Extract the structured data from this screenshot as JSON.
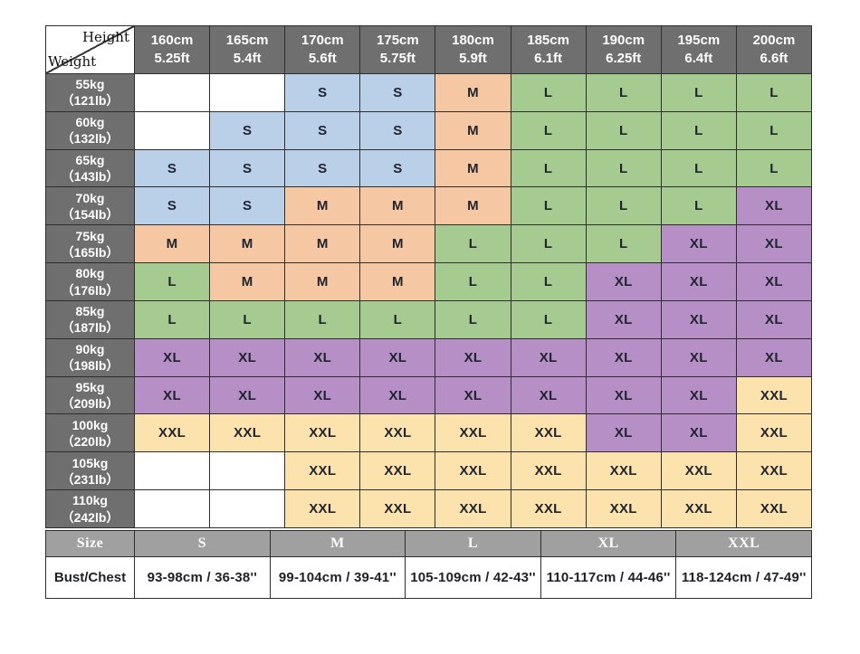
{
  "chart_data": {
    "type": "table",
    "title": "Clothing size chart by height and weight",
    "corner": {
      "height_label": "Height",
      "weight_label": "Weight"
    },
    "columns": [
      {
        "cm": "160cm",
        "ft": "5.25ft"
      },
      {
        "cm": "165cm",
        "ft": "5.4ft"
      },
      {
        "cm": "170cm",
        "ft": "5.6ft"
      },
      {
        "cm": "175cm",
        "ft": "5.75ft"
      },
      {
        "cm": "180cm",
        "ft": "5.9ft"
      },
      {
        "cm": "185cm",
        "ft": "6.1ft"
      },
      {
        "cm": "190cm",
        "ft": "6.25ft"
      },
      {
        "cm": "195cm",
        "ft": "6.4ft"
      },
      {
        "cm": "200cm",
        "ft": "6.6ft"
      }
    ],
    "rows": [
      {
        "kg": "55kg",
        "lb": "（121lb）",
        "cells": [
          "",
          "",
          "S",
          "S",
          "M",
          "L",
          "L",
          "L",
          "L"
        ]
      },
      {
        "kg": "60kg",
        "lb": "（132lb）",
        "cells": [
          "",
          "S",
          "S",
          "S",
          "M",
          "L",
          "L",
          "L",
          "L"
        ]
      },
      {
        "kg": "65kg",
        "lb": "（143lb）",
        "cells": [
          "S",
          "S",
          "S",
          "S",
          "M",
          "L",
          "L",
          "L",
          "L"
        ]
      },
      {
        "kg": "70kg",
        "lb": "（154lb）",
        "cells": [
          "S",
          "S",
          "M",
          "M",
          "M",
          "L",
          "L",
          "L",
          "XL"
        ]
      },
      {
        "kg": "75kg",
        "lb": "（165lb）",
        "cells": [
          "M",
          "M",
          "M",
          "M",
          "L",
          "L",
          "L",
          "XL",
          "XL"
        ]
      },
      {
        "kg": "80kg",
        "lb": "（176lb）",
        "cells": [
          "L",
          "M",
          "M",
          "M",
          "L",
          "L",
          "XL",
          "XL",
          "XL"
        ]
      },
      {
        "kg": "85kg",
        "lb": "（187lb）",
        "cells": [
          "L",
          "L",
          "L",
          "L",
          "L",
          "L",
          "XL",
          "XL",
          "XL"
        ]
      },
      {
        "kg": "90kg",
        "lb": "（198lb）",
        "cells": [
          "XL",
          "XL",
          "XL",
          "XL",
          "XL",
          "XL",
          "XL",
          "XL",
          "XL"
        ]
      },
      {
        "kg": "95kg",
        "lb": "（209lb）",
        "cells": [
          "XL",
          "XL",
          "XL",
          "XL",
          "XL",
          "XL",
          "XL",
          "XL",
          "XXL"
        ]
      },
      {
        "kg": "100kg",
        "lb": "（220lb）",
        "cells": [
          "XXL",
          "XXL",
          "XXL",
          "XXL",
          "XXL",
          "XXL",
          "XL",
          "XL",
          "XXL"
        ]
      },
      {
        "kg": "105kg",
        "lb": "（231lb）",
        "cells": [
          "",
          "",
          "XXL",
          "XXL",
          "XXL",
          "XXL",
          "XXL",
          "XXL",
          "XXL"
        ]
      },
      {
        "kg": "110kg",
        "lb": "（242lb）",
        "cells": [
          "",
          "",
          "XXL",
          "XXL",
          "XXL",
          "XXL",
          "XXL",
          "XXL",
          "XXL"
        ]
      }
    ],
    "size_row": {
      "label": "Size",
      "values": [
        "S",
        "M",
        "L",
        "XL",
        "XXL"
      ]
    },
    "bust_row": {
      "label": "Bust/Chest",
      "values": [
        "93-98cm / 36-38''",
        "99-104cm / 39-41''",
        "105-109cm / 42-43''",
        "110-117cm / 44-46''",
        "118-124cm / 47-49''"
      ]
    }
  },
  "colors": {
    "header_bg": "#6f6f6f",
    "size_row_bg": "#a0a0a0",
    "grid_line": "#2e2e2e",
    "S": "#b9d0e8",
    "M": "#f5c7a2",
    "L": "#a5cb90",
    "XL": "#b58fc6",
    "XXL": "#fce3ad",
    "empty": "#ffffff"
  }
}
